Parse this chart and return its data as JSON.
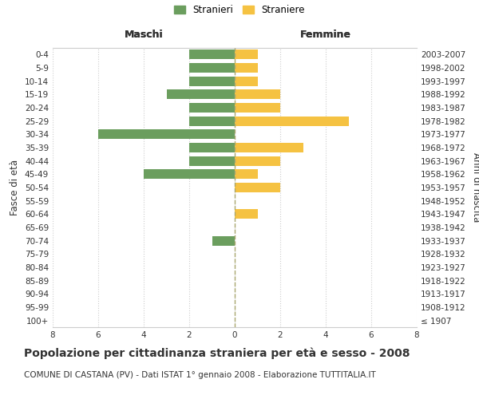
{
  "age_groups": [
    "100+",
    "95-99",
    "90-94",
    "85-89",
    "80-84",
    "75-79",
    "70-74",
    "65-69",
    "60-64",
    "55-59",
    "50-54",
    "45-49",
    "40-44",
    "35-39",
    "30-34",
    "25-29",
    "20-24",
    "15-19",
    "10-14",
    "5-9",
    "0-4"
  ],
  "birth_years": [
    "≤ 1907",
    "1908-1912",
    "1913-1917",
    "1918-1922",
    "1923-1927",
    "1928-1932",
    "1933-1937",
    "1938-1942",
    "1943-1947",
    "1948-1952",
    "1953-1957",
    "1958-1962",
    "1963-1967",
    "1968-1972",
    "1973-1977",
    "1978-1982",
    "1983-1987",
    "1988-1992",
    "1993-1997",
    "1998-2002",
    "2003-2007"
  ],
  "males": [
    0,
    0,
    0,
    0,
    0,
    0,
    1,
    0,
    0,
    0,
    0,
    4,
    2,
    2,
    6,
    2,
    2,
    3,
    2,
    2,
    2
  ],
  "females": [
    0,
    0,
    0,
    0,
    0,
    0,
    0,
    0,
    1,
    0,
    2,
    1,
    2,
    3,
    0,
    5,
    2,
    2,
    1,
    1,
    1
  ],
  "male_color": "#6b9e5e",
  "female_color": "#f5c242",
  "bar_height": 0.72,
  "xlim": 8,
  "title": "Popolazione per cittadinanza straniera per età e sesso - 2008",
  "subtitle": "COMUNE DI CASTANA (PV) - Dati ISTAT 1° gennaio 2008 - Elaborazione TUTTITALIA.IT",
  "left_label": "Maschi",
  "right_label": "Femmine",
  "ylabel": "Fasce di età",
  "y2label": "Anni di nascita",
  "legend_male": "Stranieri",
  "legend_female": "Straniere",
  "bg_color": "#ffffff",
  "grid_color": "#cccccc",
  "axis_label_color": "#333333",
  "title_fontsize": 10,
  "subtitle_fontsize": 7.5,
  "tick_fontsize": 7.5,
  "label_fontsize": 8.5,
  "maschi_femmine_fontsize": 9
}
